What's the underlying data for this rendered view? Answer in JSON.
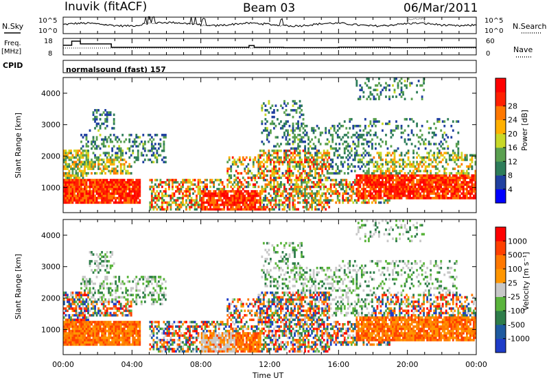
{
  "header": {
    "station": "Inuvik (fitACF)",
    "beam": "Beam 03",
    "date": "06/Mar/2011"
  },
  "panels": {
    "nsky_label": "N.Sky",
    "nsearch_label": "N.Search",
    "freq_label_line1": "Freq.",
    "freq_label_line2": "[MHz]",
    "nave_label": "Nave",
    "cpid_label": "CPID",
    "cpid_value": "normalsound (fast) 157",
    "noise_left_ticks": [
      "10^5",
      "10^0"
    ],
    "noise_right_ticks": [
      "10^5",
      "10^0"
    ],
    "freq_ticks": [
      "18",
      "8"
    ],
    "nave_ticks": [
      "60",
      "0"
    ]
  },
  "colors": {
    "power_scale": [
      "#0000ff",
      "#2040a0",
      "#2e7d5a",
      "#5aa050",
      "#c8d828",
      "#ffb000",
      "#ff7800",
      "#ff2000",
      "#ff0000"
    ],
    "velocity_scale": [
      "#1e3cc8",
      "#1e5aa0",
      "#2e7d4a",
      "#5ab43c",
      "#c8c8c8",
      "#ff9600",
      "#ff7800",
      "#ff4000",
      "#ff0000"
    ],
    "ground_scatter": "#c8c8c8"
  },
  "chart_data": [
    {
      "type": "heatmap",
      "name": "power",
      "ylabel": "Slant Range [km]",
      "yticks": [
        "1000",
        "2000",
        "3000",
        "4000"
      ],
      "ylim": [
        200,
        4500
      ],
      "xlim": [
        "00:00",
        "24:00"
      ],
      "colorbar_label": "Power [dB]",
      "colorbar_ticks": [
        "4",
        "8",
        "12",
        "16",
        "20",
        "24",
        "28"
      ],
      "colorbar_range": [
        0,
        30
      ]
    },
    {
      "type": "heatmap",
      "name": "velocity",
      "ylabel": "Slant Range [km]",
      "yticks": [
        "1000",
        "2000",
        "3000",
        "4000"
      ],
      "ylim": [
        200,
        4500
      ],
      "xlim": [
        "00:00",
        "24:00"
      ],
      "xlabel": "Time UT",
      "xticks": [
        "00:00",
        "04:00",
        "08:00",
        "12:00",
        "16:00",
        "20:00",
        "00:00"
      ],
      "colorbar_label": "Velocity [m s⁻¹]",
      "colorbar_ticks": [
        "1000",
        "500",
        "100",
        "25",
        "-25",
        "-100",
        "-500",
        "-1000"
      ]
    },
    {
      "type": "line",
      "name": "frequency",
      "ylabel": "Freq. [MHz]",
      "ylim": [
        8,
        18
      ],
      "x_hours": [
        0,
        0.5,
        0.5,
        1.0,
        1.0,
        2.8,
        2.8,
        10.8,
        10.8,
        11.1,
        11.1,
        12.8,
        12.8,
        16.0,
        16.0,
        19.0,
        19.0,
        21.2,
        21.2,
        24.0
      ],
      "values": [
        14,
        14,
        17,
        17,
        15,
        15,
        12.5,
        12.5,
        13.8,
        13.8,
        12.5,
        12.5,
        12.3,
        12.3,
        12.6,
        12.6,
        12.3,
        12.3,
        12.5,
        12.5
      ]
    }
  ]
}
